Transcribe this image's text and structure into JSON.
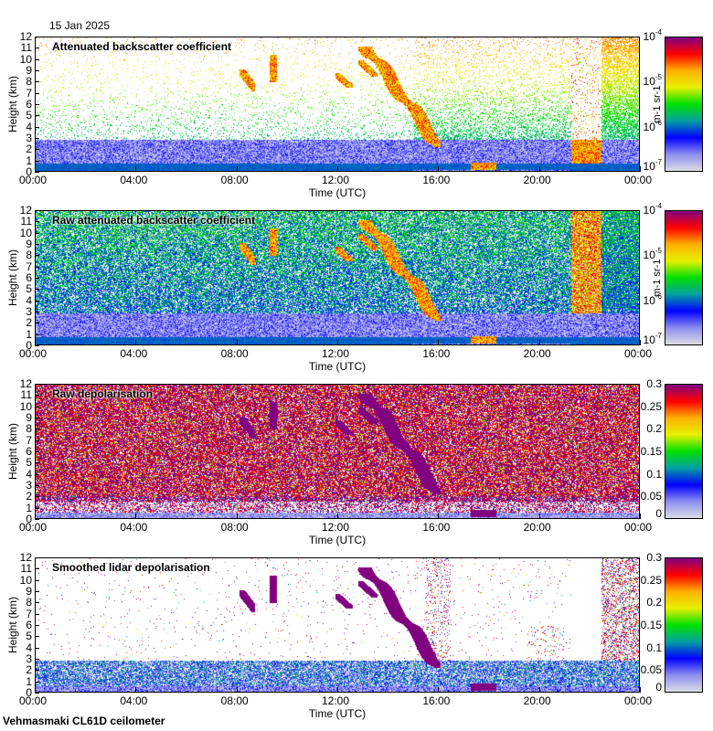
{
  "date": "15 Jan 2025",
  "footer": "Vehmasmaki CL61D ceilometer",
  "colors": {
    "cmap": [
      "#dcdce6",
      "#8c8cf0",
      "#0000ff",
      "#00a0a0",
      "#00e000",
      "#e6f000",
      "#ffb000",
      "#ff0000",
      "#800080"
    ]
  },
  "chart_data": [
    {
      "type": "heatmap",
      "title": "Attenuated backscatter coefficient",
      "xlabel": "Time (UTC)",
      "ylabel": "Height (km)",
      "xticks": [
        "00:00",
        "04:00",
        "08:00",
        "12:00",
        "16:00",
        "20:00",
        "00:00"
      ],
      "yticks": [
        "0",
        "1",
        "2",
        "3",
        "4",
        "5",
        "6",
        "7",
        "8",
        "9",
        "10",
        "11",
        "12"
      ],
      "ylim": [
        0,
        12
      ],
      "xlim_hours": [
        0,
        24
      ],
      "colorbar": {
        "scale": "log",
        "ticks": [
          "10-7",
          "10-6",
          "10-5",
          "10-4"
        ],
        "unit": "m-1 sr-1",
        "range": [
          1e-07,
          0.0001
        ]
      },
      "mode": "att"
    },
    {
      "type": "heatmap",
      "title": "Raw attenuated backscatter coefficient",
      "xlabel": "Time (UTC)",
      "ylabel": "Height (km)",
      "xticks": [
        "00:00",
        "04:00",
        "08:00",
        "12:00",
        "16:00",
        "20:00",
        "00:00"
      ],
      "yticks": [
        "0",
        "1",
        "2",
        "3",
        "4",
        "5",
        "6",
        "7",
        "8",
        "9",
        "10",
        "11",
        "12"
      ],
      "ylim": [
        0,
        12
      ],
      "xlim_hours": [
        0,
        24
      ],
      "colorbar": {
        "scale": "log",
        "ticks": [
          "10-7",
          "10-6",
          "10-5",
          "10-4"
        ],
        "unit": "m-1 sr-1",
        "range": [
          1e-07,
          0.0001
        ]
      },
      "mode": "raw"
    },
    {
      "type": "heatmap",
      "title": "Raw depolarisation",
      "xlabel": "Time (UTC)",
      "ylabel": "Height (km)",
      "xticks": [
        "00:00",
        "04:00",
        "08:00",
        "12:00",
        "16:00",
        "20:00",
        "00:00"
      ],
      "yticks": [
        "0",
        "1",
        "2",
        "3",
        "4",
        "5",
        "6",
        "7",
        "8",
        "9",
        "10",
        "11",
        "12"
      ],
      "ylim": [
        0,
        12
      ],
      "xlim_hours": [
        0,
        24
      ],
      "colorbar": {
        "scale": "linear",
        "ticks": [
          "0",
          "0.05",
          "0.1",
          "0.15",
          "0.2",
          "0.25",
          "0.3"
        ],
        "unit": "",
        "range": [
          0,
          0.3
        ]
      },
      "mode": "rawdep"
    },
    {
      "type": "heatmap",
      "title": "Smoothed lidar depolarisation",
      "xlabel": "Time (UTC)",
      "ylabel": "Height (km)",
      "xticks": [
        "00:00",
        "04:00",
        "08:00",
        "12:00",
        "16:00",
        "20:00",
        "00:00"
      ],
      "yticks": [
        "0",
        "1",
        "2",
        "3",
        "4",
        "5",
        "6",
        "7",
        "8",
        "9",
        "10",
        "11",
        "12"
      ],
      "ylim": [
        0,
        12
      ],
      "xlim_hours": [
        0,
        24
      ],
      "colorbar": {
        "scale": "linear",
        "ticks": [
          "0",
          "0.05",
          "0.1",
          "0.15",
          "0.2",
          "0.25",
          "0.3"
        ],
        "unit": "",
        "range": [
          0,
          0.3
        ]
      },
      "mode": "smdep"
    }
  ]
}
